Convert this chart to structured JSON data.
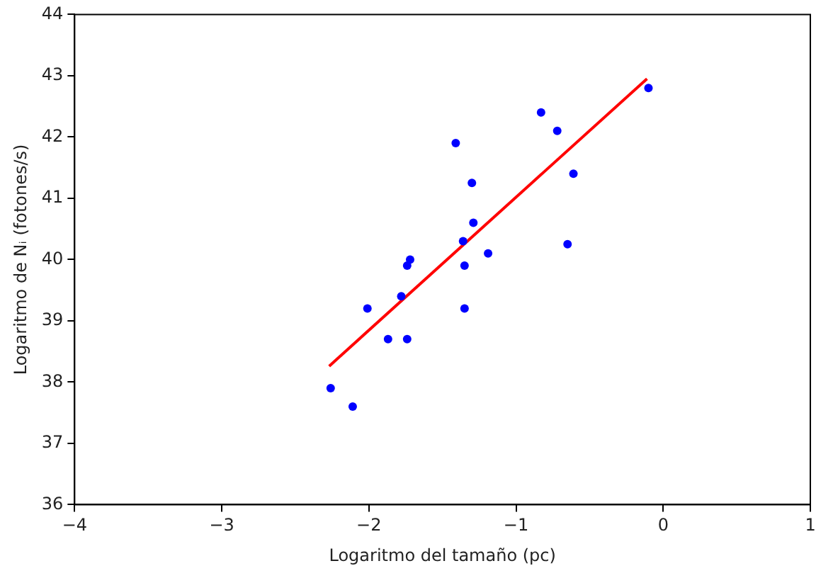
{
  "chart_data": {
    "type": "scatter",
    "xlabel": "Logaritmo del tamaño (pc)",
    "ylabel": "Logaritmo de Nᵢ (fotones/s)",
    "xlim": [
      -4,
      1
    ],
    "xticks": [
      {
        "value": -4,
        "label": "−4"
      },
      {
        "value": -3,
        "label": "−3"
      },
      {
        "value": -2,
        "label": "−2"
      },
      {
        "value": -1,
        "label": "−1"
      },
      0,
      1
    ],
    "ylim": [
      36,
      44
    ],
    "yticks": [
      36,
      37,
      38,
      39,
      40,
      41,
      42,
      43,
      44
    ],
    "grid": false,
    "legend": false,
    "marker": "circle",
    "series": [
      {
        "type": "scatter",
        "color": "#0000ff",
        "x": [
          -2.26,
          -2.11,
          -2.01,
          -1.87,
          -1.78,
          -1.74,
          -1.74,
          -1.72,
          -1.41,
          -1.36,
          -1.35,
          -1.35,
          -1.3,
          -1.29,
          -1.19,
          -0.83,
          -0.72,
          -0.65,
          -0.61,
          -0.1
        ],
        "values": [
          37.9,
          37.6,
          39.2,
          38.7,
          39.4,
          38.7,
          39.9,
          40.0,
          41.9,
          40.3,
          39.9,
          39.2,
          41.25,
          40.6,
          40.1,
          42.4,
          42.1,
          40.25,
          41.4,
          42.8
        ]
      },
      {
        "type": "line",
        "color": "#ff0000",
        "marker": "none",
        "line_style": "solid",
        "x": [
          -2.27,
          -0.11
        ],
        "values": [
          38.26,
          42.95
        ]
      }
    ]
  }
}
